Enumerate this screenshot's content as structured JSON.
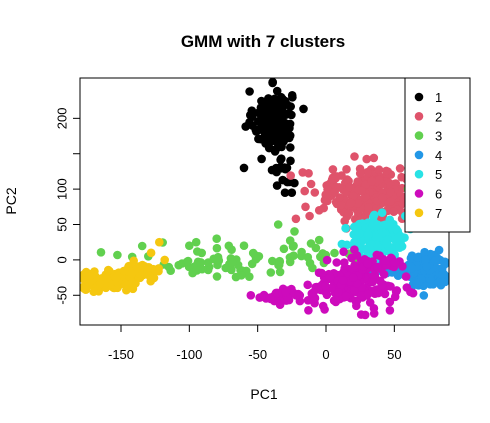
{
  "chart_data": {
    "type": "scatter",
    "title": "GMM with 7 clusters",
    "xlabel": "PC1",
    "ylabel": "PC2",
    "xlim": [
      -180,
      90
    ],
    "ylim": [
      -92,
      257
    ],
    "x_ticks": [
      -150,
      -100,
      -50,
      0,
      50
    ],
    "y_ticks": [
      -50,
      0,
      50,
      100,
      200
    ],
    "x_tick_labels": [
      "-150",
      "-100",
      "-50",
      "0",
      "50"
    ],
    "y_tick_labels": [
      "-50",
      "0",
      "50",
      "100",
      "200"
    ],
    "legend_position": "top-right",
    "series": [
      {
        "name": "1",
        "color": "#000000",
        "clusters": [
          {
            "cx": -39,
            "cy": 197,
            "sx": 7,
            "sy": 21,
            "n": 190
          },
          {
            "cx": -32,
            "cy": 127,
            "sx": 5,
            "sy": 18,
            "n": 14
          }
        ],
        "points": [
          [
            -60,
            130
          ],
          [
            -26,
            140
          ],
          [
            -30,
            95
          ],
          [
            -25,
            95
          ]
        ]
      },
      {
        "name": "2",
        "color": "#DF536B",
        "clusters": [
          {
            "cx": 37,
            "cy": 90,
            "sx": 15,
            "sy": 20,
            "n": 210
          },
          {
            "cx": 5,
            "cy": 97,
            "sx": 12,
            "sy": 14,
            "n": 30
          }
        ],
        "points": [
          [
            -22,
            58
          ],
          [
            -12,
            62
          ],
          [
            -5,
            70
          ],
          [
            -15,
            75
          ],
          [
            8,
            118
          ],
          [
            15,
            128
          ],
          [
            25,
            122
          ]
        ]
      },
      {
        "name": "3",
        "color": "#61D04F",
        "clusters": [
          {
            "cx": -70,
            "cy": -2,
            "sx": 35,
            "sy": 12,
            "n": 60
          },
          {
            "cx": -15,
            "cy": 10,
            "sx": 12,
            "sy": 10,
            "n": 20
          }
        ],
        "points": [
          [
            -35,
            50
          ],
          [
            -5,
            28
          ],
          [
            -115,
            -10
          ],
          [
            -130,
            5
          ],
          [
            -100,
            20
          ],
          [
            -80,
            30
          ],
          [
            -60,
            20
          ],
          [
            -95,
            25
          ],
          [
            60,
            100
          ]
        ]
      },
      {
        "name": "4",
        "color": "#2297E6",
        "clusters": [
          {
            "cx": 73,
            "cy": -14,
            "sx": 7,
            "sy": 11,
            "n": 190
          },
          {
            "cx": 48,
            "cy": -12,
            "sx": 9,
            "sy": 8,
            "n": 25
          }
        ],
        "points": []
      },
      {
        "name": "5",
        "color": "#28E2E5",
        "clusters": [
          {
            "cx": 37,
            "cy": 30,
            "sx": 11,
            "sy": 13,
            "n": 170
          }
        ],
        "points": [
          [
            62,
            50
          ],
          [
            58,
            62
          ]
        ]
      },
      {
        "name": "6",
        "color": "#CD0BBC",
        "clusters": [
          {
            "cx": 20,
            "cy": -37,
            "sx": 15,
            "sy": 15,
            "n": 180
          },
          {
            "cx": -33,
            "cy": -52,
            "sx": 7,
            "sy": 5,
            "n": 40
          },
          {
            "cx": 35,
            "cy": -2,
            "sx": 10,
            "sy": 8,
            "n": 30
          }
        ],
        "points": [
          [
            -55,
            -50
          ]
        ]
      },
      {
        "name": "7",
        "color": "#F5C710",
        "clusters": [
          {
            "cx": -157,
            "cy": -30,
            "sx": 11,
            "sy": 6,
            "n": 140
          },
          {
            "cx": -138,
            "cy": -17,
            "sx": 8,
            "sy": 5,
            "n": 50
          }
        ],
        "points": [
          [
            -122,
            25
          ],
          [
            -128,
            10
          ],
          [
            -118,
            0
          ],
          [
            -170,
            -45
          ]
        ]
      }
    ]
  }
}
